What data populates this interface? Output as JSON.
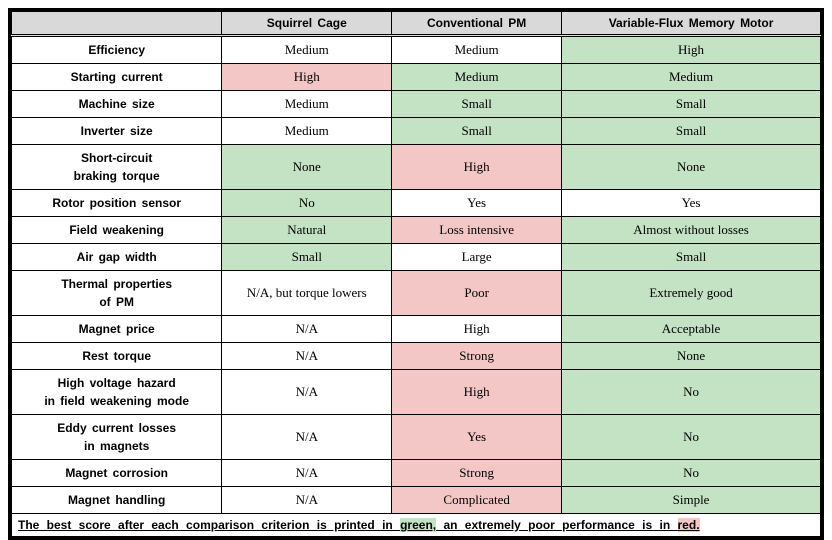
{
  "colors": {
    "header_bg": "#d9d9d9",
    "green": "#c4e2c4",
    "red": "#f4c7c7",
    "border": "#000000"
  },
  "header": {
    "blank": "",
    "c1": "Squirrel Cage",
    "c2": "Conventional PM",
    "c3": "Variable-Flux Memory Motor"
  },
  "rows": [
    {
      "label": "Efficiency",
      "c1": {
        "v": "Medium",
        "hl": ""
      },
      "c2": {
        "v": "Medium",
        "hl": ""
      },
      "c3": {
        "v": "High",
        "hl": "green"
      }
    },
    {
      "label": "Starting current",
      "c1": {
        "v": "High",
        "hl": "red"
      },
      "c2": {
        "v": "Medium",
        "hl": "green"
      },
      "c3": {
        "v": "Medium",
        "hl": "green"
      }
    },
    {
      "label": "Machine size",
      "c1": {
        "v": "Medium",
        "hl": ""
      },
      "c2": {
        "v": "Small",
        "hl": "green"
      },
      "c3": {
        "v": "Small",
        "hl": "green"
      }
    },
    {
      "label": "Inverter size",
      "c1": {
        "v": "Medium",
        "hl": ""
      },
      "c2": {
        "v": "Small",
        "hl": "green"
      },
      "c3": {
        "v": "Small",
        "hl": "green"
      }
    },
    {
      "label": "Short-circuit\nbraking torque",
      "c1": {
        "v": "None",
        "hl": "green"
      },
      "c2": {
        "v": "High",
        "hl": "red"
      },
      "c3": {
        "v": "None",
        "hl": "green"
      }
    },
    {
      "label": "Rotor position sensor",
      "c1": {
        "v": "No",
        "hl": "green"
      },
      "c2": {
        "v": "Yes",
        "hl": ""
      },
      "c3": {
        "v": "Yes",
        "hl": ""
      }
    },
    {
      "label": "Field weakening",
      "c1": {
        "v": "Natural",
        "hl": "green"
      },
      "c2": {
        "v": "Loss intensive",
        "hl": "red"
      },
      "c3": {
        "v": "Almost without losses",
        "hl": "green"
      }
    },
    {
      "label": "Air gap width",
      "c1": {
        "v": "Small",
        "hl": "green"
      },
      "c2": {
        "v": "Large",
        "hl": ""
      },
      "c3": {
        "v": "Small",
        "hl": "green"
      }
    },
    {
      "label": "Thermal properties\nof PM",
      "c1": {
        "v": "N/A, but torque lowers",
        "hl": ""
      },
      "c2": {
        "v": "Poor",
        "hl": "red"
      },
      "c3": {
        "v": "Extremely good",
        "hl": "green"
      }
    },
    {
      "label": "Magnet price",
      "c1": {
        "v": "N/A",
        "hl": ""
      },
      "c2": {
        "v": "High",
        "hl": ""
      },
      "c3": {
        "v": "Acceptable",
        "hl": "green"
      }
    },
    {
      "label": "Rest torque",
      "c1": {
        "v": "N/A",
        "hl": ""
      },
      "c2": {
        "v": "Strong",
        "hl": "red"
      },
      "c3": {
        "v": "None",
        "hl": "green"
      }
    },
    {
      "label": "High voltage hazard\nin field weakening mode",
      "c1": {
        "v": "N/A",
        "hl": ""
      },
      "c2": {
        "v": "High",
        "hl": "red"
      },
      "c3": {
        "v": "No",
        "hl": "green"
      }
    },
    {
      "label": "Eddy current losses\nin magnets",
      "c1": {
        "v": "N/A",
        "hl": ""
      },
      "c2": {
        "v": "Yes",
        "hl": "red"
      },
      "c3": {
        "v": "No",
        "hl": "green"
      }
    },
    {
      "label": "Magnet corrosion",
      "c1": {
        "v": "N/A",
        "hl": ""
      },
      "c2": {
        "v": "Strong",
        "hl": "red"
      },
      "c3": {
        "v": "No",
        "hl": "green"
      }
    },
    {
      "label": "Magnet handling",
      "c1": {
        "v": "N/A",
        "hl": ""
      },
      "c2": {
        "v": "Complicated",
        "hl": "red"
      },
      "c3": {
        "v": "Simple",
        "hl": "green"
      }
    }
  ],
  "footer": {
    "pre": "The best score after each comparison criterion is printed in ",
    "green_word": "green,",
    "mid": " an extremely poor performance is in ",
    "red_word": "red."
  }
}
